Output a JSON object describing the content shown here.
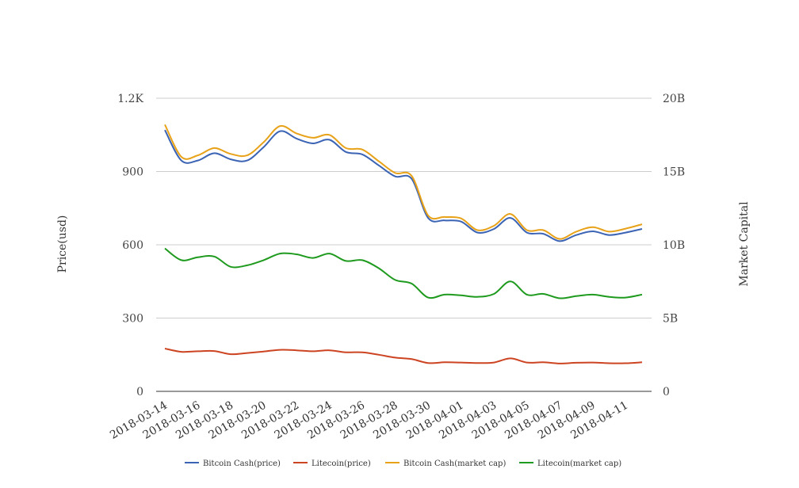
{
  "chart_data": {
    "type": "line",
    "title": "",
    "xlabel": "",
    "ylabel": "Price(usd)",
    "y2label": "Market Capital",
    "x": [
      "2018-03-14",
      "2018-03-15",
      "2018-03-16",
      "2018-03-17",
      "2018-03-18",
      "2018-03-19",
      "2018-03-20",
      "2018-03-21",
      "2018-03-22",
      "2018-03-23",
      "2018-03-24",
      "2018-03-25",
      "2018-03-26",
      "2018-03-27",
      "2018-03-28",
      "2018-03-29",
      "2018-03-30",
      "2018-03-31",
      "2018-04-01",
      "2018-04-02",
      "2018-04-03",
      "2018-04-04",
      "2018-04-05",
      "2018-04-06",
      "2018-04-07",
      "2018-04-08",
      "2018-04-09",
      "2018-04-10",
      "2018-04-11",
      "2018-04-12"
    ],
    "xtick_labels": [
      "2018-03-14",
      "2018-03-16",
      "2018-03-18",
      "2018-03-20",
      "2018-03-22",
      "2018-03-24",
      "2018-03-26",
      "2018-03-28",
      "2018-03-30",
      "2018-04-01",
      "2018-04-03",
      "2018-04-05",
      "2018-04-07",
      "2018-04-09",
      "2018-04-11"
    ],
    "ylim": [
      0,
      1200
    ],
    "yticks": [
      "0",
      "300",
      "600",
      "900",
      "1.2K"
    ],
    "y2lim": [
      0,
      20000000000
    ],
    "y2ticks": [
      "0",
      "5B",
      "10B",
      "15B",
      "20B"
    ],
    "grid": true,
    "legend": "bottom",
    "series": [
      {
        "name": "Bitcoin Cash(price)",
        "axis": "left",
        "color": "#3c64b4",
        "values": [
          1070,
          945,
          945,
          975,
          950,
          945,
          1000,
          1065,
          1035,
          1015,
          1030,
          980,
          970,
          925,
          880,
          870,
          710,
          700,
          695,
          650,
          665,
          710,
          650,
          645,
          615,
          640,
          655,
          640,
          650,
          665
        ]
      },
      {
        "name": "Litecoin(price)",
        "axis": "left",
        "color": "#cc4422",
        "values": [
          175,
          162,
          164,
          165,
          152,
          157,
          163,
          170,
          168,
          164,
          168,
          160,
          160,
          150,
          138,
          132,
          116,
          119,
          118,
          116,
          118,
          135,
          118,
          119,
          114,
          117,
          118,
          115,
          115,
          119
        ]
      },
      {
        "name": "Bitcoin Cash(market cap)",
        "axis": "right",
        "color": "#e8a219",
        "values": [
          18200000000,
          16000000000,
          16100000000,
          16600000000,
          16200000000,
          16100000000,
          17000000000,
          18100000000,
          17600000000,
          17300000000,
          17500000000,
          16600000000,
          16500000000,
          15700000000,
          14900000000,
          14700000000,
          12000000000,
          11900000000,
          11800000000,
          11000000000,
          11300000000,
          12100000000,
          11000000000,
          11000000000,
          10400000000,
          10900000000,
          11200000000,
          10900000000,
          11100000000,
          11400000000
        ]
      },
      {
        "name": "Litecoin(market cap)",
        "axis": "right",
        "color": "#1e9a1e",
        "values": [
          9750000000,
          8950000000,
          9150000000,
          9200000000,
          8500000000,
          8600000000,
          8950000000,
          9400000000,
          9350000000,
          9100000000,
          9400000000,
          8900000000,
          8950000000,
          8400000000,
          7600000000,
          7350000000,
          6400000000,
          6600000000,
          6550000000,
          6450000000,
          6650000000,
          7500000000,
          6600000000,
          6650000000,
          6350000000,
          6500000000,
          6600000000,
          6450000000,
          6400000000,
          6600000000
        ]
      }
    ]
  }
}
